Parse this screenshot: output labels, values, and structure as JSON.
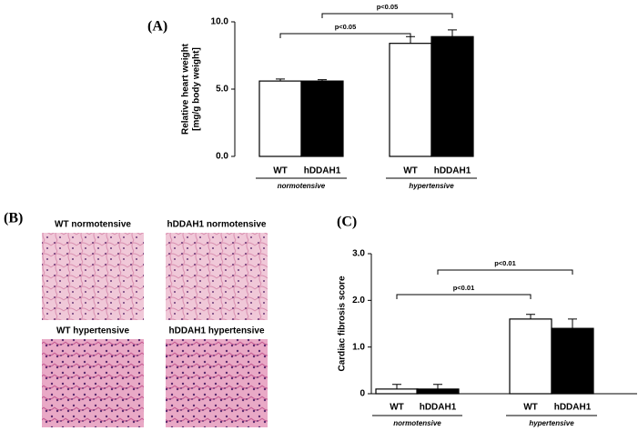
{
  "chart_data": [
    {
      "type": "bar",
      "panel": "(A)",
      "ylabel": [
        "Relative heart weight",
        "[mg/g body weight]"
      ],
      "categories": [
        "WT",
        "hDDAH1",
        "WT",
        "hDDAH1"
      ],
      "groups": [
        "normotensive",
        "hypertensive"
      ],
      "values": [
        5.6,
        5.6,
        8.4,
        8.9
      ],
      "errors": [
        0.15,
        0.1,
        0.5,
        0.5
      ],
      "colors": [
        "#ffffff",
        "#000000",
        "#ffffff",
        "#000000"
      ],
      "ylim": [
        0,
        10
      ],
      "yticks": [
        {
          "value": 0,
          "label": "0.0"
        },
        {
          "value": 5,
          "label": "5.0"
        },
        {
          "value": 10,
          "label": "10.0"
        }
      ],
      "annotations": [
        {
          "text": "p<0.05",
          "between": [
            0,
            2
          ]
        },
        {
          "text": "p<0.05",
          "between": [
            1,
            3
          ]
        }
      ]
    },
    {
      "type": "bar",
      "panel": "(C)",
      "ylabel": [
        "Cardiac fibrosis score"
      ],
      "categories": [
        "WT",
        "hDDAH1",
        "WT",
        "hDDAH1"
      ],
      "groups": [
        "normotensive",
        "hypertensive"
      ],
      "values": [
        0.1,
        0.1,
        1.6,
        1.4
      ],
      "errors": [
        0.1,
        0.1,
        0.1,
        0.2
      ],
      "colors": [
        "#ffffff",
        "#000000",
        "#ffffff",
        "#000000"
      ],
      "ylim": [
        0,
        3
      ],
      "yticks": [
        0,
        {
          "value": 1,
          "label": "1.0"
        },
        {
          "value": 2,
          "label": "2.0"
        },
        {
          "value": 3,
          "label": "3.0"
        }
      ],
      "annotations": [
        {
          "text": "p<0.01",
          "between": [
            0,
            2
          ]
        },
        {
          "text": "p<0.01",
          "between": [
            1,
            3
          ]
        }
      ]
    }
  ],
  "histology": {
    "panel": "(B)",
    "captions": [
      "WT normotensive",
      "hDDAH1 normotensive",
      "WT hypertensive",
      "hDDAH1 hypertensive"
    ]
  }
}
